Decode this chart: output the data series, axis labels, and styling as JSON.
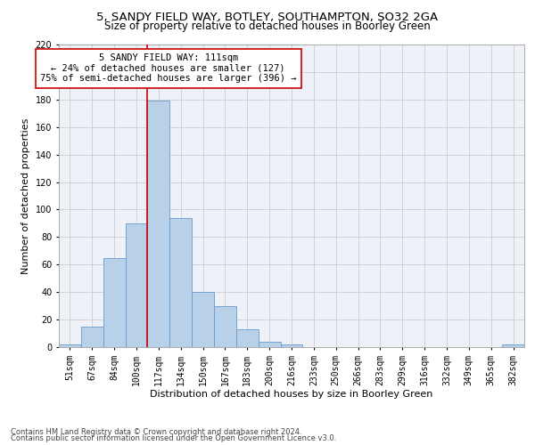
{
  "title1": "5, SANDY FIELD WAY, BOTLEY, SOUTHAMPTON, SO32 2GA",
  "title2": "Size of property relative to detached houses in Boorley Green",
  "xlabel": "Distribution of detached houses by size in Boorley Green",
  "ylabel": "Number of detached properties",
  "footnote1": "Contains HM Land Registry data © Crown copyright and database right 2024.",
  "footnote2": "Contains public sector information licensed under the Open Government Licence v3.0.",
  "bin_labels": [
    "51sqm",
    "67sqm",
    "84sqm",
    "100sqm",
    "117sqm",
    "134sqm",
    "150sqm",
    "167sqm",
    "183sqm",
    "200sqm",
    "216sqm",
    "233sqm",
    "250sqm",
    "266sqm",
    "283sqm",
    "299sqm",
    "316sqm",
    "332sqm",
    "349sqm",
    "365sqm",
    "382sqm"
  ],
  "bar_values": [
    2,
    15,
    65,
    90,
    179,
    94,
    40,
    30,
    13,
    4,
    2,
    0,
    0,
    0,
    0,
    0,
    0,
    0,
    0,
    0,
    2
  ],
  "bar_color": "#b8d0e8",
  "bar_edge_color": "#6699cc",
  "annotation_line_color": "#cc0000",
  "annotation_box_text": "5 SANDY FIELD WAY: 111sqm\n← 24% of detached houses are smaller (127)\n75% of semi-detached houses are larger (396) →",
  "annotation_box_color": "#ffffff",
  "annotation_box_edge_color": "#cc0000",
  "ylim": [
    0,
    220
  ],
  "yticks": [
    0,
    20,
    40,
    60,
    80,
    100,
    120,
    140,
    160,
    180,
    200,
    220
  ],
  "grid_color": "#cccccc",
  "bg_color": "#eef2f8",
  "title1_fontsize": 9.5,
  "title2_fontsize": 8.5,
  "annotation_fontsize": 7.5,
  "axis_label_fontsize": 8,
  "tick_fontsize": 7
}
